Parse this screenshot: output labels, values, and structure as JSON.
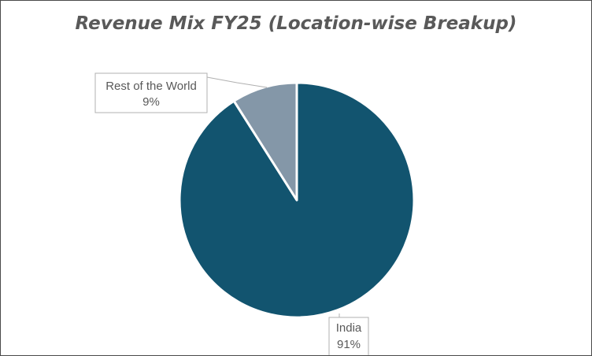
{
  "chart_data": {
    "type": "pie",
    "title": "Revenue Mix FY25 (Location-wise Breakup)",
    "categories": [
      "India",
      "Rest of the World"
    ],
    "values": [
      91,
      9
    ],
    "data_labels": [
      {
        "name": "India",
        "value": "91%"
      },
      {
        "name": "Rest of the World",
        "value": "9%"
      }
    ],
    "colors": [
      "#12546F",
      "#8497A8"
    ],
    "legend": "none"
  }
}
